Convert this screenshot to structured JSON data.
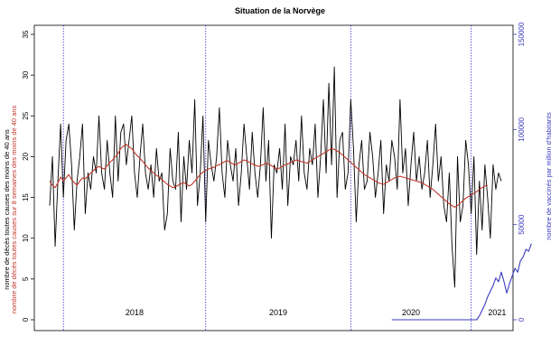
{
  "chart_data": {
    "type": "line",
    "title": "Situation de la Norvège",
    "ylabel_left": "nombre de décès toutes causes des moins de 40 ans",
    "ylabel_left_red": "nombre de décès toutes causes sur 8 semaines des moins de 40 ans",
    "ylabel_right": "nombre de vaccinés par million d'habitants",
    "ylim_left": [
      0,
      35
    ],
    "yticks_left": [
      0,
      5,
      10,
      15,
      20,
      25,
      30,
      35
    ],
    "ylim_right": [
      0,
      150000
    ],
    "yticks_right": [
      0,
      50000,
      100000,
      150000
    ],
    "year_labels": [
      "2018",
      "2019",
      "2020",
      "2021"
    ],
    "year_boundaries_week": [
      0,
      52,
      104,
      157
    ],
    "series": [
      {
        "key": "weekly_deaths",
        "color": "#000000",
        "values": [
          14,
          20,
          9,
          17,
          24,
          15,
          22,
          24,
          19,
          11,
          17,
          20,
          24,
          13,
          18,
          16,
          20,
          18,
          25,
          18,
          16,
          22,
          18,
          15,
          25,
          17,
          23,
          24,
          19,
          22,
          25,
          18,
          15,
          20,
          24,
          18,
          16,
          19,
          15,
          21,
          17,
          18,
          11,
          13,
          21,
          17,
          16,
          23,
          12,
          20,
          16,
          22,
          18,
          27,
          14,
          18,
          25,
          12,
          22,
          19,
          17,
          20,
          26,
          18,
          15,
          22,
          19,
          17,
          21,
          14,
          18,
          24,
          20,
          16,
          23,
          18,
          15,
          19,
          26,
          17,
          22,
          10,
          19,
          18,
          21,
          16,
          24,
          14,
          20,
          19,
          22,
          17,
          25,
          18,
          16,
          21,
          19,
          24,
          15,
          20,
          27,
          18,
          29,
          19,
          31,
          15,
          22,
          23,
          16,
          18,
          27,
          21,
          12,
          19,
          22,
          16,
          17,
          23,
          20,
          15,
          18,
          22,
          13,
          19,
          17,
          22,
          20,
          16,
          27,
          18,
          21,
          14,
          19,
          23,
          17,
          20,
          16,
          18,
          22,
          15,
          19,
          24,
          17,
          20,
          14,
          12,
          18,
          9,
          4,
          20,
          12,
          14,
          22,
          19,
          13,
          20,
          8,
          17,
          11,
          19,
          15,
          10,
          19,
          16,
          18,
          17
        ]
      },
      {
        "key": "rolling_8_weeks",
        "color": "#c0392b",
        "values": [
          17,
          16.5,
          16.2,
          16.8,
          17.5,
          17,
          17.4,
          17.8,
          17.2,
          16.8,
          16.5,
          17,
          17.4,
          17.3,
          17.6,
          18,
          18.3,
          18.6,
          18.8,
          18.6,
          18.5,
          18.9,
          19.3,
          19.6,
          20,
          20.4,
          21,
          21.3,
          21.5,
          21.2,
          21,
          20.5,
          20.1,
          19.8,
          19.4,
          19,
          18.6,
          18.3,
          18,
          17.7,
          17.5,
          17.2,
          16.9,
          16.6,
          16.4,
          16.2,
          16.3,
          16.5,
          16.7,
          16.8,
          16.6,
          16.4,
          16.6,
          17,
          17.4,
          17.8,
          18.1,
          18.3,
          18.5,
          18.6,
          18.7,
          18.9,
          19,
          19.2,
          19.4,
          19.5,
          19.3,
          19.1,
          19,
          19.2,
          19.4,
          19.6,
          19.5,
          19.3,
          19.1,
          19,
          18.8,
          18.9,
          19,
          19.2,
          19.1,
          18.9,
          18.7,
          18.5,
          18.6,
          18.8,
          19,
          19.1,
          19.3,
          19.4,
          19.6,
          19.5,
          19.4,
          19.3,
          19.2,
          19.4,
          19.6,
          19.8,
          20,
          20.2,
          20.4,
          20.6,
          20.8,
          21,
          20.9,
          20.7,
          20.5,
          20.2,
          19.9,
          19.6,
          19.3,
          19,
          18.7,
          18.4,
          18.1,
          17.8,
          17.6,
          17.4,
          17.2,
          17,
          16.8,
          16.7,
          16.6,
          16.8,
          17,
          17.2,
          17.4,
          17.5,
          17.6,
          17.5,
          17.4,
          17.3,
          17.2,
          17.1,
          17,
          16.9,
          16.8,
          16.6,
          16.4,
          16.2,
          16,
          15.7,
          15.4,
          15.1,
          14.8,
          14.5,
          14.2,
          14,
          13.8,
          14,
          14.3,
          14.6,
          14.9,
          15.1,
          15.3,
          15.5,
          15.7,
          16,
          16.2,
          16.4,
          16.5
        ]
      },
      {
        "key": "vaccinated_per_million",
        "color": "#3b3bbf",
        "start_week": 125,
        "values": [
          0,
          0,
          0,
          0,
          0,
          0,
          0,
          0,
          0,
          0,
          0,
          0,
          0,
          0,
          0,
          0,
          0,
          0,
          0,
          0,
          0,
          0,
          0,
          0,
          0,
          0,
          0,
          0,
          0,
          0,
          0,
          0,
          2000,
          5000,
          8000,
          12000,
          15000,
          18000,
          22000,
          20000,
          25000,
          20000,
          14000,
          19000,
          23000,
          27000,
          25000,
          31000,
          33000,
          37000,
          36000,
          40000
        ]
      }
    ],
    "grid": false,
    "legend": "none"
  }
}
